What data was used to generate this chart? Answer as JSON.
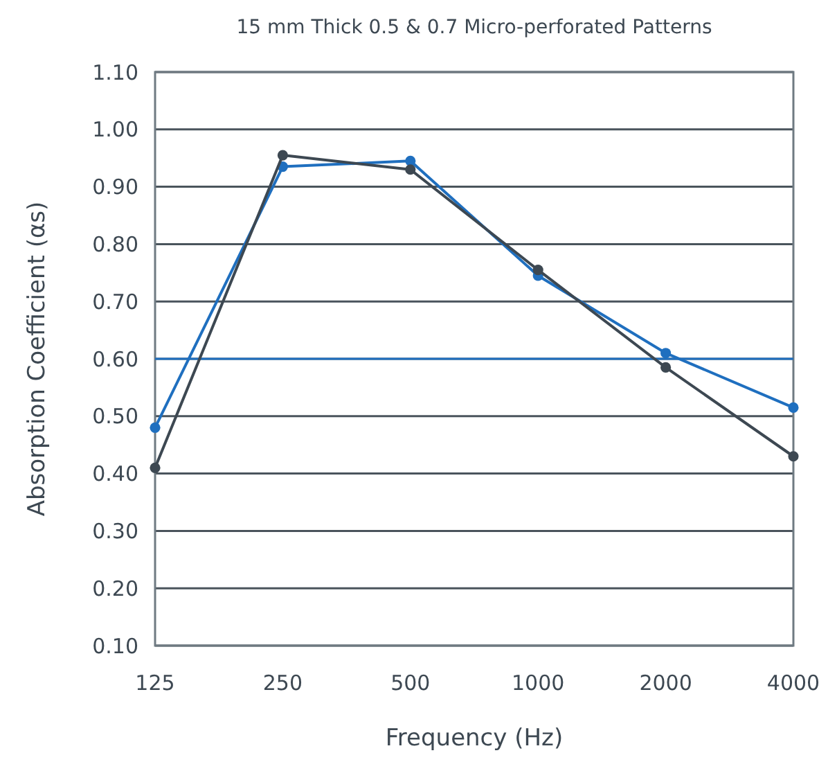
{
  "chart_data": {
    "type": "line",
    "title": "15 mm Thick 0.5 & 0.7 Micro-perforated Patterns",
    "xlabel": "Frequency (Hz)",
    "ylabel": "Absorption Coefficient (αs)",
    "categories": [
      "125",
      "250",
      "500",
      "1000",
      "2000",
      "4000"
    ],
    "series": [
      {
        "color": "#1f6fbf",
        "values": [
          0.48,
          0.935,
          0.945,
          0.745,
          0.61,
          0.515
        ]
      },
      {
        "color": "#3d4852",
        "values": [
          0.41,
          0.955,
          0.93,
          0.755,
          0.585,
          0.43
        ]
      }
    ],
    "ylim": [
      0.1,
      1.1
    ],
    "yticks": [
      {
        "value": 0.1,
        "label": "0.10"
      },
      {
        "value": 0.2,
        "label": "0.20"
      },
      {
        "value": 0.3,
        "label": "0.30"
      },
      {
        "value": 0.4,
        "label": "0.40"
      },
      {
        "value": 0.5,
        "label": "0.50"
      },
      {
        "value": 0.6,
        "label": "0.60"
      },
      {
        "value": 0.7,
        "label": "0.70"
      },
      {
        "value": 0.8,
        "label": "0.80"
      },
      {
        "value": 0.9,
        "label": "0.90"
      },
      {
        "value": 1.0,
        "label": "1.00"
      },
      {
        "value": 1.1,
        "label": "1.10"
      }
    ],
    "grid": "y",
    "marker": "circle",
    "line_style": "solid",
    "ref_lines": [
      {
        "axis": "y",
        "value": 0.6,
        "color": "#1f6fbf"
      }
    ]
  }
}
